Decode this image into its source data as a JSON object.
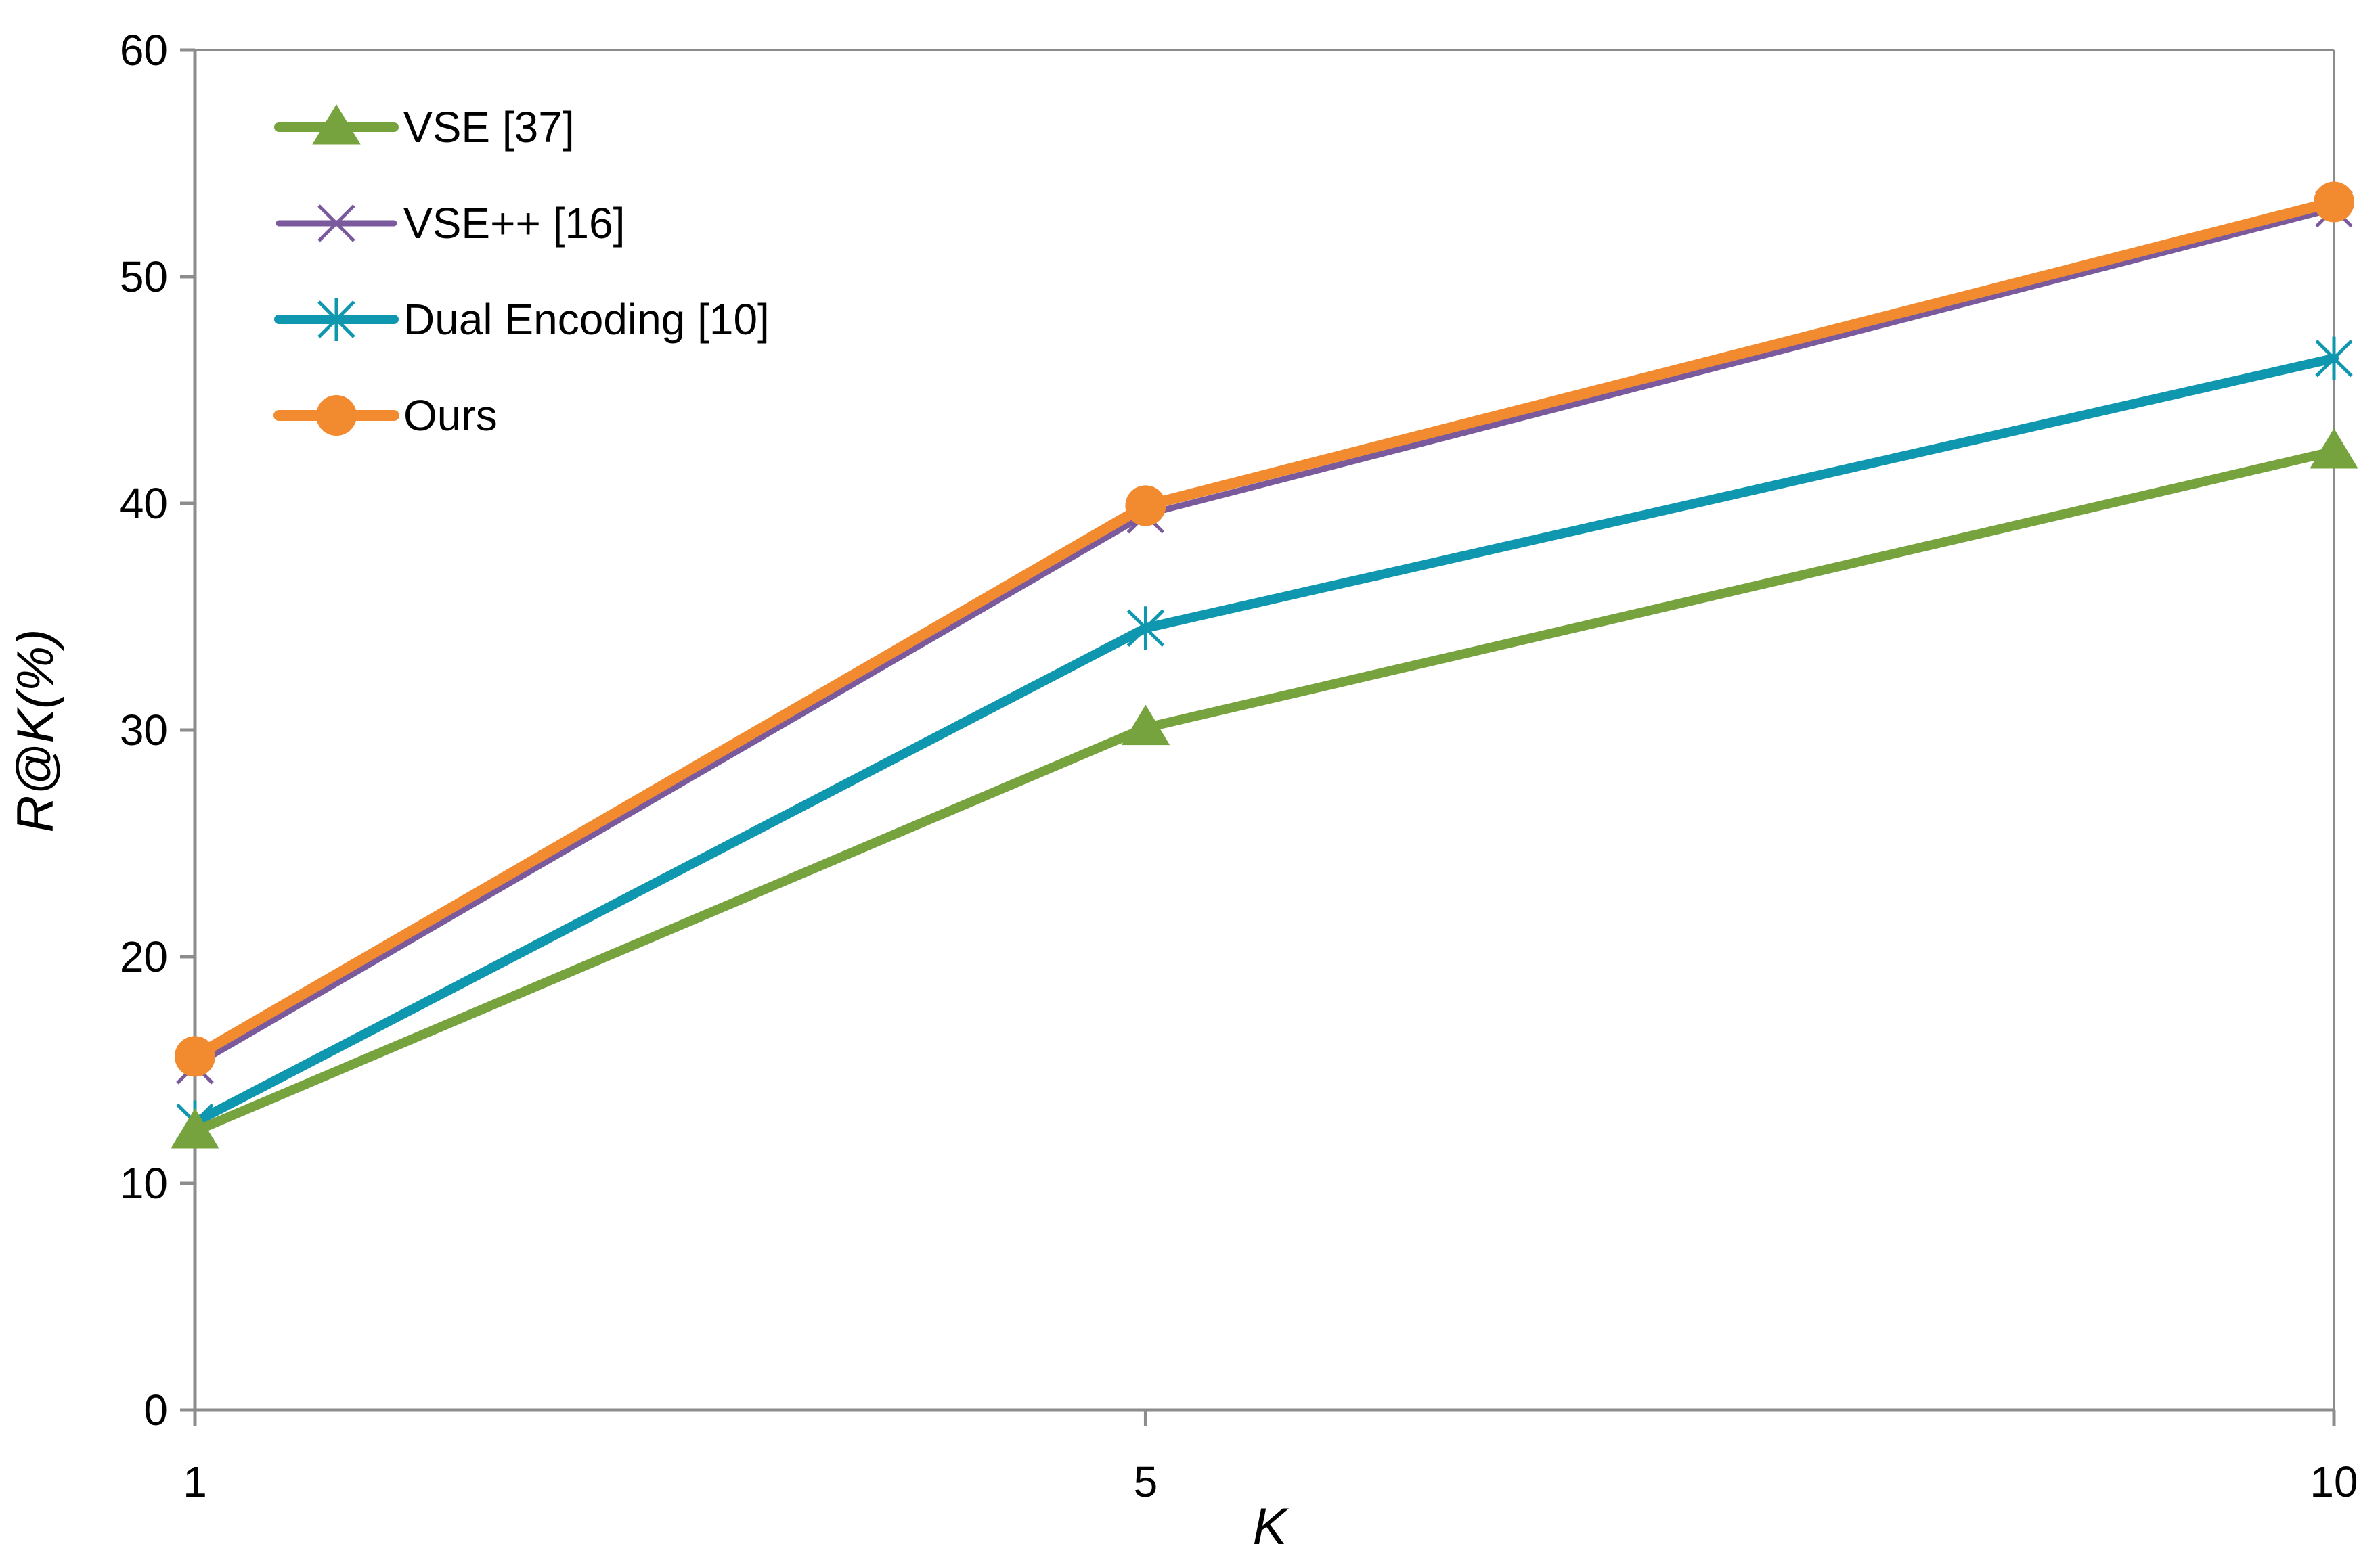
{
  "chart_data": {
    "type": "line",
    "title": "",
    "xlabel": "K",
    "ylabel": "R@K(%)",
    "x": [
      1,
      5,
      10
    ],
    "x_tick_labels": [
      "1",
      "5",
      "10"
    ],
    "ylim": [
      0,
      60
    ],
    "y_ticks": [
      0,
      10,
      20,
      30,
      40,
      50,
      60
    ],
    "grid": false,
    "legend_position": "top-left",
    "series": [
      {
        "name": "VSE [37]",
        "values": [
          12.3,
          30.1,
          42.3
        ],
        "color": "#77A33E",
        "marker": "triangle"
      },
      {
        "name": "VSE++ [16]",
        "values": [
          15.2,
          39.5,
          53.0
        ],
        "color": "#7A5A9C",
        "marker": "x"
      },
      {
        "name": "Dual Encoding [10]",
        "values": [
          12.7,
          34.5,
          46.4
        ],
        "color": "#0E97AE",
        "marker": "asterisk"
      },
      {
        "name": "Ours",
        "values": [
          15.6,
          39.9,
          53.3
        ],
        "color": "#F28A30",
        "marker": "circle"
      }
    ]
  }
}
